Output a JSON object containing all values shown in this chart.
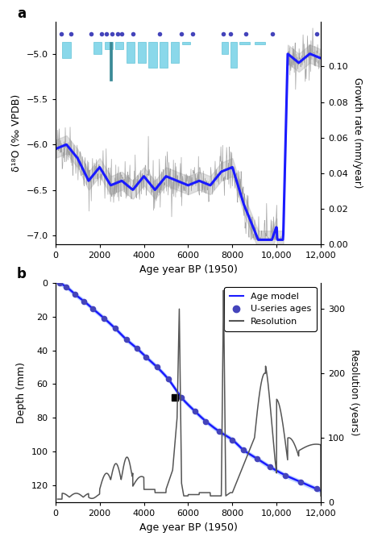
{
  "panel_a": {
    "title": "a",
    "xlabel": "Age year BP (1950)",
    "ylabel_left": "δ¹⁸O (‰ VPDB)",
    "ylabel_right": "Growth rate (mm/year)",
    "xlim": [
      0,
      12000
    ],
    "ylim_left": [
      -7.1,
      -4.65
    ],
    "ylim_right": [
      0,
      0.125
    ],
    "yticks_left": [
      -7.0,
      -6.5,
      -6.0,
      -5.5,
      -5.0
    ],
    "yticks_right": [
      0,
      0.02,
      0.04,
      0.06,
      0.08,
      0.1
    ],
    "xticks": [
      0,
      2000,
      4000,
      6000,
      8000,
      10000,
      12000
    ],
    "xtick_labels": [
      "0",
      "2000",
      "4000",
      "6000",
      "8000",
      "10,000",
      "12,000"
    ],
    "line_color_blue": "#1a1aff",
    "line_color_gray": "#888888",
    "ci_color": "#bbbbbb",
    "bar_color": "#7dd4e8",
    "bar_color_dark": "#3a8a96",
    "dot_color": "#4444bb"
  },
  "panel_b": {
    "title": "b",
    "xlabel": "Age year BP (1950)",
    "ylabel_left": "Depth (mm)",
    "ylabel_right": "Resolution (years)",
    "xlim": [
      0,
      12000
    ],
    "ylim_left": [
      130,
      0
    ],
    "ylim_right": [
      0,
      340
    ],
    "yticks_left": [
      0,
      20,
      40,
      60,
      80,
      100,
      120
    ],
    "yticks_right": [
      0,
      100,
      200,
      300
    ],
    "xticks": [
      0,
      2000,
      4000,
      6000,
      8000,
      10000,
      12000
    ],
    "xtick_labels": [
      "0",
      "2000",
      "4000",
      "6000",
      "8000",
      "10,000",
      "12,000"
    ],
    "line_color_blue": "#1a1aff",
    "line_color_gray": "#555555",
    "ci_color": "#99bbff",
    "dot_color": "#4444bb",
    "legend_labels": [
      "Age model",
      "U-series ages",
      "Resolution"
    ],
    "age_model_ages": [
      200,
      500,
      900,
      1300,
      1700,
      2200,
      2700,
      3200,
      3700,
      4100,
      4600,
      5100,
      5700,
      6300,
      6800,
      7400,
      8000,
      8500,
      9100,
      9700,
      10400,
      11100,
      11800
    ],
    "age_model_depths": [
      0.3,
      2.5,
      7,
      11,
      15.5,
      21,
      27,
      33.5,
      39,
      44,
      50,
      57,
      68,
      76,
      82,
      88,
      93,
      99,
      104,
      109,
      114,
      118,
      122
    ],
    "black_sq_age": 5400,
    "black_sq_depth": 68
  }
}
